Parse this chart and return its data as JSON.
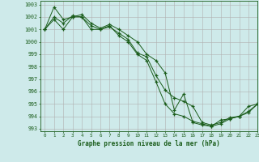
{
  "title": "Graphe pression niveau de la mer (hPa)",
  "background_color": "#ceeaea",
  "grid_color": "#b0b0b0",
  "line_color": "#1a5c1a",
  "marker_color": "#1a5c1a",
  "xlim": [
    -0.5,
    23
  ],
  "ylim": [
    992.8,
    1003.3
  ],
  "x_ticks": [
    0,
    1,
    2,
    3,
    4,
    5,
    6,
    7,
    8,
    9,
    10,
    11,
    12,
    13,
    14,
    15,
    16,
    17,
    18,
    19,
    20,
    21,
    22,
    23
  ],
  "y_ticks": [
    993,
    994,
    995,
    996,
    997,
    998,
    999,
    1000,
    1001,
    1002,
    1003
  ],
  "series": [
    [
      1001.0,
      1001.8,
      1001.0,
      1002.0,
      1002.2,
      1001.5,
      1001.1,
      1001.4,
      1001.0,
      1000.5,
      1000.0,
      999.0,
      998.5,
      997.5,
      994.5,
      995.8,
      993.5,
      993.3,
      993.2,
      993.7,
      993.8,
      994.0,
      994.4,
      995.0
    ],
    [
      1001.0,
      1002.0,
      1001.5,
      1002.1,
      1002.0,
      1001.3,
      1001.0,
      1001.2,
      1000.7,
      1000.2,
      999.1,
      998.8,
      997.3,
      996.1,
      995.5,
      995.2,
      994.8,
      993.5,
      993.3,
      993.5,
      993.9,
      994.0,
      994.8,
      995.0
    ],
    [
      1001.0,
      1002.8,
      1001.8,
      1002.0,
      1002.0,
      1001.0,
      1001.0,
      1001.3,
      1000.5,
      1000.0,
      999.0,
      998.5,
      996.8,
      995.0,
      994.2,
      994.0,
      993.6,
      993.4,
      993.2,
      993.4,
      993.8,
      994.0,
      994.3,
      995.0
    ]
  ]
}
